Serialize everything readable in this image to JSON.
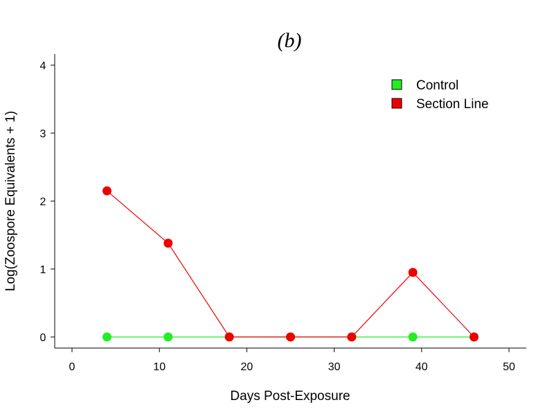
{
  "chart_data": {
    "type": "line",
    "title": "(b)",
    "xlabel": "Days Post-Exposure",
    "ylabel": "Log(Zoospore Equivalents + 1)",
    "xlim": [
      0,
      50
    ],
    "ylim": [
      0,
      4
    ],
    "xticks": [
      0,
      10,
      20,
      30,
      40,
      50
    ],
    "yticks": [
      0,
      1,
      2,
      3,
      4
    ],
    "grid": false,
    "legend_position": "top-right",
    "series": [
      {
        "name": "Control",
        "color": "#22ee22",
        "x": [
          4,
          11,
          18,
          25,
          32,
          39,
          46
        ],
        "y": [
          0,
          0,
          0,
          0,
          0,
          0,
          0
        ]
      },
      {
        "name": "Section Line",
        "color": "#ee0000",
        "x": [
          4,
          11,
          18,
          25,
          32,
          39,
          46
        ],
        "y": [
          2.15,
          1.38,
          0,
          0,
          0,
          0.95,
          0
        ]
      }
    ]
  }
}
